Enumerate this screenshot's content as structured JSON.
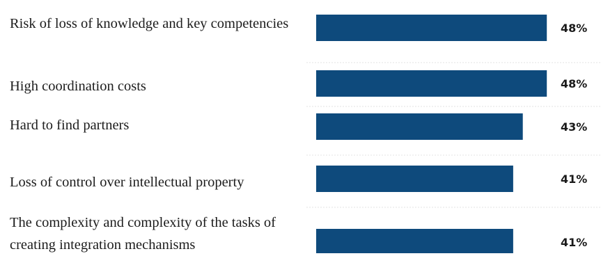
{
  "chart_data": {
    "type": "bar",
    "orientation": "horizontal",
    "categories": [
      "Risk of loss of knowledge and key competencies",
      "High coordination costs",
      "Hard to find partners",
      "Loss of control over intellectual property",
      "The complexity and complexity of the tasks of creating integration mechanisms"
    ],
    "values": [
      48,
      48,
      43,
      41,
      41
    ],
    "value_labels": [
      "48%",
      "48%",
      "43%",
      "41%",
      "41%"
    ],
    "unit": "%",
    "bar_color": "#0e4a7c",
    "grid": false,
    "legend": false
  }
}
